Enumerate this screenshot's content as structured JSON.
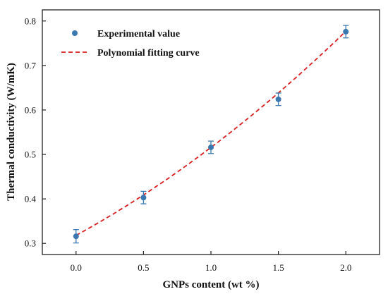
{
  "chart_data": {
    "type": "scatter",
    "title": "",
    "xlabel": "GNPs content (wt %)",
    "ylabel": "Thermal conductivity (W/mK)",
    "xlim": [
      -0.25,
      2.25
    ],
    "ylim": [
      0.275,
      0.825
    ],
    "xticks": [
      0.0,
      0.5,
      1.0,
      1.5,
      2.0
    ],
    "xtick_labels": [
      "0.0",
      "0.5",
      "1.0",
      "1.5",
      "2.0"
    ],
    "yticks": [
      0.3,
      0.4,
      0.5,
      0.6,
      0.7,
      0.8
    ],
    "ytick_labels": [
      "0.3",
      "0.4",
      "0.5",
      "0.6",
      "0.7",
      "0.8"
    ],
    "grid": false,
    "legend_position": "top-left",
    "series": [
      {
        "name": "Experimental value",
        "kind": "points-with-error-bars",
        "color": "#3b78b0",
        "error_color": "#3b78b0",
        "x": [
          0.0,
          0.5,
          1.0,
          1.5,
          2.0
        ],
        "y": [
          0.316,
          0.403,
          0.516,
          0.624,
          0.776
        ],
        "yerr": [
          0.015,
          0.014,
          0.014,
          0.014,
          0.014
        ]
      },
      {
        "name": "Polynomial fitting curve",
        "kind": "dashed-line",
        "color": "#d81e1e",
        "fit_coefficients": {
          "a": 0.0317,
          "b": 0.166,
          "c": 0.318
        }
      }
    ]
  }
}
